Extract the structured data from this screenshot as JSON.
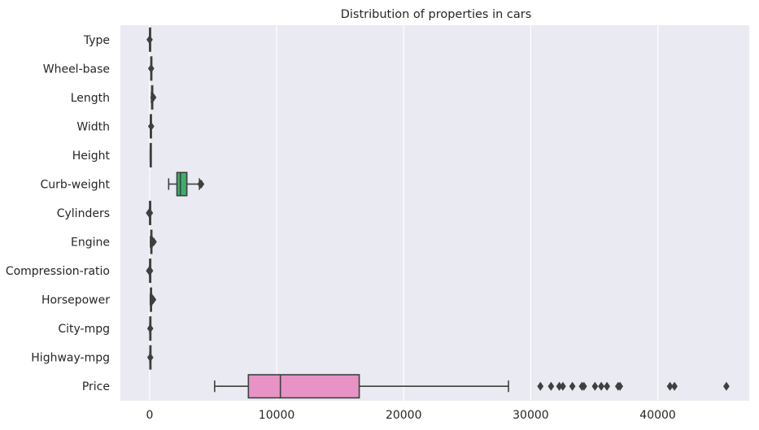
{
  "chart_data": {
    "type": "boxplot",
    "orientation": "horizontal",
    "title": "Distribution of properties in cars",
    "xlabel": "",
    "ylabel": "",
    "xlim": [
      -2300,
      47200
    ],
    "xticks": [
      0,
      10000,
      20000,
      30000,
      40000
    ],
    "grid": true,
    "legend": "none",
    "colors": {
      "background": "#eaeaf2",
      "grid": "#ffffff",
      "edge": "#3f3f3f",
      "curb_weight_box": "#3aaf6b",
      "price_box": "#e793c5"
    },
    "categories": [
      "Type",
      "Wheel-base",
      "Length",
      "Width",
      "Height",
      "Curb-weight",
      "Cylinders",
      "Engine",
      "Compression-ratio",
      "Horsepower",
      "City-mpg",
      "Highway-mpg",
      "Price"
    ],
    "boxes": [
      {
        "category": "Type",
        "whislo": 0,
        "q1": 0,
        "med": 0,
        "q3": 0,
        "whishi": 0,
        "fliers": [
          2
        ]
      },
      {
        "category": "Wheel-base",
        "whislo": 86,
        "q1": 94,
        "med": 97,
        "q3": 102,
        "whishi": 115,
        "fliers": [
          120
        ]
      },
      {
        "category": "Length",
        "whislo": 141,
        "q1": 166,
        "med": 173,
        "q3": 184,
        "whishi": 208,
        "fliers": [
          290
        ]
      },
      {
        "category": "Width",
        "whislo": 60,
        "q1": 64,
        "med": 65,
        "q3": 66,
        "whishi": 69,
        "fliers": [
          120
        ]
      },
      {
        "category": "Height",
        "whislo": 48,
        "q1": 52,
        "med": 54,
        "q3": 56,
        "whishi": 60,
        "fliers": []
      },
      {
        "category": "Curb-weight",
        "whislo": 1500,
        "q1": 2150,
        "med": 2420,
        "q3": 2930,
        "whishi": 3920,
        "fliers": [
          4000,
          4060
        ]
      },
      {
        "category": "Cylinders",
        "whislo": 4,
        "q1": 4,
        "med": 4,
        "q3": 4,
        "whishi": 4,
        "fliers": [
          -50,
          30
        ]
      },
      {
        "category": "Engine",
        "whislo": 61,
        "q1": 98,
        "med": 120,
        "q3": 141,
        "whishi": 200,
        "fliers": [
          250,
          300,
          320
        ]
      },
      {
        "category": "Compression-ratio",
        "whislo": 7,
        "q1": 8.6,
        "med": 9,
        "q3": 9.4,
        "whishi": 10.5,
        "fliers": [
          -40,
          40
        ]
      },
      {
        "category": "Horsepower",
        "whislo": 48,
        "q1": 70,
        "med": 95,
        "q3": 116,
        "whishi": 184,
        "fliers": [
          250,
          280
        ]
      },
      {
        "category": "City-mpg",
        "whislo": 13,
        "q1": 19,
        "med": 24,
        "q3": 30,
        "whishi": 45,
        "fliers": [
          49
        ]
      },
      {
        "category": "Highway-mpg",
        "whislo": 16,
        "q1": 25,
        "med": 30,
        "q3": 34,
        "whishi": 47,
        "fliers": [
          54
        ]
      },
      {
        "category": "Price",
        "whislo": 5118,
        "q1": 7775,
        "med": 10295,
        "q3": 16500,
        "whishi": 28248,
        "fliers": [
          30760,
          31600,
          32250,
          32528,
          33278,
          34028,
          34184,
          35056,
          35550,
          36000,
          36880,
          37028,
          40960,
          41315,
          45400
        ]
      }
    ]
  }
}
